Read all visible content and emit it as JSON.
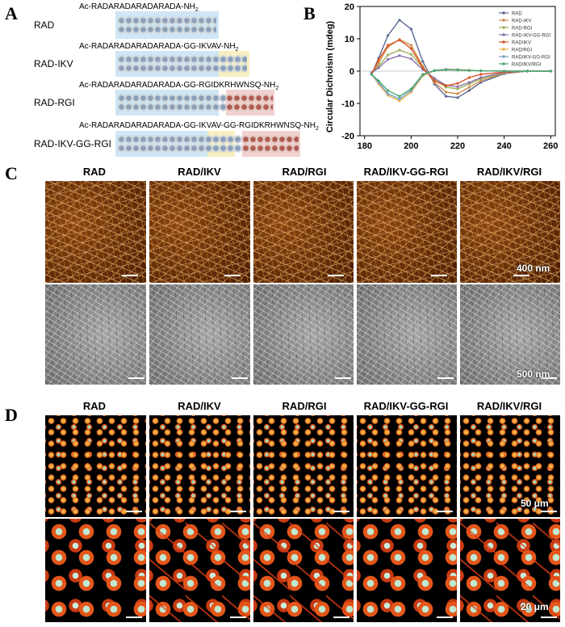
{
  "panel_labels": {
    "a": "A",
    "b": "B",
    "c": "C",
    "d": "D"
  },
  "panel_a": {
    "peptides": [
      {
        "name": "RAD",
        "sequence": "Ac-RADARADARADARADA-NH",
        "subscript": "2"
      },
      {
        "name": "RAD-IKV",
        "sequence": "Ac-RADARADARADARADA-GG-IKVAV-NH",
        "subscript": "2"
      },
      {
        "name": "RAD-RGI",
        "sequence": "Ac-RADARADARADARADA-GG-RGIDKRHWNSQ-NH",
        "subscript": "2"
      },
      {
        "name": "RAD-IKV-GG-RGI",
        "sequence": "Ac-RADARADARADARADA-GG-IKVAV-GG-RGIDKRHWNSQ-NH",
        "subscript": "2"
      }
    ]
  },
  "chart_data": {
    "type": "line",
    "title": "",
    "xlabel": "",
    "ylabel": "Circular Dichroism (mdeg)",
    "xlim": [
      178,
      262
    ],
    "ylim": [
      -20,
      20
    ],
    "x_ticks": [
      180,
      200,
      220,
      240,
      260
    ],
    "y_ticks": [
      -20,
      -10,
      0,
      10,
      20
    ],
    "legend_position": "top-right",
    "x": [
      183,
      186,
      190,
      195,
      200,
      205,
      210,
      215,
      220,
      225,
      230,
      240,
      250,
      260
    ],
    "series": [
      {
        "name": "RAD",
        "color": "#5b6a94",
        "values": [
          -1,
          4,
          11,
          15.8,
          13,
          3,
          -4,
          -7.8,
          -8.2,
          -6,
          -3.5,
          -0.8,
          0,
          0
        ]
      },
      {
        "name": "RAD-IKV",
        "color": "#d08a4c",
        "values": [
          -1,
          2.5,
          7.5,
          9.8,
          8,
          1.5,
          -3.5,
          -6.5,
          -7,
          -5,
          -3,
          -0.6,
          0,
          0
        ]
      },
      {
        "name": "RAD-RGI",
        "color": "#9bb35a",
        "values": [
          -0.5,
          1.5,
          5,
          6.5,
          5.2,
          1,
          -2.6,
          -5,
          -5.5,
          -4,
          -2.4,
          -0.5,
          0,
          0
        ]
      },
      {
        "name": "RAD-IKV-GG-RGI",
        "color": "#8c6fae",
        "values": [
          -0.5,
          1,
          3.6,
          4.8,
          3.8,
          0.5,
          -2.2,
          -4.4,
          -4.8,
          -3.5,
          -2,
          -0.4,
          0,
          0
        ]
      },
      {
        "name": "RAD/IKV",
        "color": "#d8572a",
        "values": [
          -1,
          3.5,
          8,
          9.6,
          7,
          1,
          -3,
          -4.5,
          -3.8,
          -2,
          -1,
          -0.3,
          0,
          0
        ]
      },
      {
        "name": "RAD/RGI",
        "color": "#e8b04a",
        "values": [
          -1,
          -4,
          -7.5,
          -9.2,
          -6.5,
          -1.5,
          0.2,
          0.6,
          0.5,
          0.3,
          0.1,
          0,
          0,
          0
        ]
      },
      {
        "name": "RAD/IKV-GG-RGI",
        "color": "#7aa0c8",
        "values": [
          -1,
          -3.5,
          -7,
          -8.6,
          -6,
          -1.2,
          0.2,
          0.5,
          0.4,
          0.2,
          0.1,
          0,
          0,
          0
        ]
      },
      {
        "name": "RAD/IKV/RGI",
        "color": "#4aa870",
        "values": [
          -1,
          -3,
          -6,
          -7.8,
          -5.5,
          -1,
          0.1,
          0.4,
          0.3,
          0.2,
          0.1,
          0,
          0,
          0
        ]
      }
    ]
  },
  "panel_c": {
    "columns": [
      "RAD",
      "RAD/IKV",
      "RAD/RGI",
      "RAD/IKV-GG-RGI",
      "RAD/IKV/RGI"
    ],
    "row1_scale": "400 nm",
    "row2_scale": "500 nm"
  },
  "panel_d": {
    "columns": [
      "RAD",
      "RAD/IKV",
      "RAD/RGI",
      "RAD/IKV-GG-RGI",
      "RAD/IKV/RGI"
    ],
    "row1_scale": "50 μm",
    "row2_scale": "20 μm"
  }
}
